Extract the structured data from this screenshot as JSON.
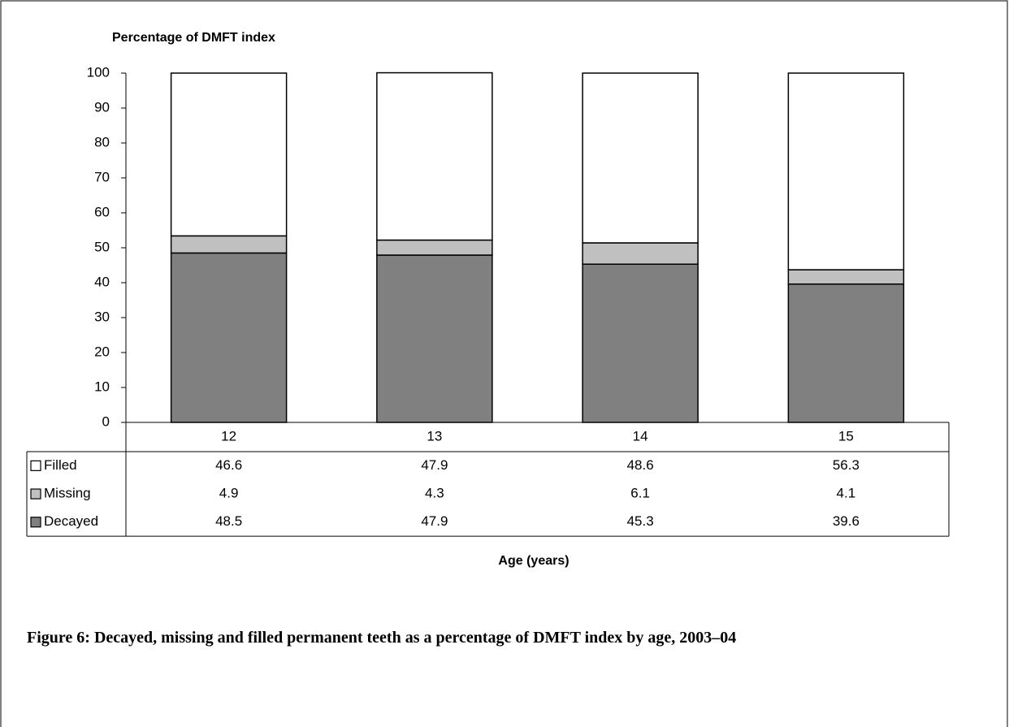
{
  "chart_data": {
    "type": "stacked_bar",
    "y_axis_label": "Percentage of DMFT index",
    "x_axis_label": "Age (years)",
    "caption": "Figure 6: Decayed, missing and filled permanent teeth as a percentage of DMFT index by age, 2003–04",
    "categories": [
      "12",
      "13",
      "14",
      "15"
    ],
    "series": [
      {
        "name": "Decayed",
        "color": "#808080",
        "values": [
          48.5,
          47.9,
          45.3,
          39.6
        ]
      },
      {
        "name": "Missing",
        "color": "#c0c0c0",
        "values": [
          4.9,
          4.3,
          6.1,
          4.1
        ]
      },
      {
        "name": "Filled",
        "color": "#ffffff",
        "values": [
          46.6,
          47.9,
          48.6,
          56.3
        ]
      }
    ],
    "ylim": [
      0,
      100
    ],
    "yticks": [
      0,
      10,
      20,
      30,
      40,
      50,
      60,
      70,
      80,
      90,
      100
    ],
    "data_table": true
  }
}
